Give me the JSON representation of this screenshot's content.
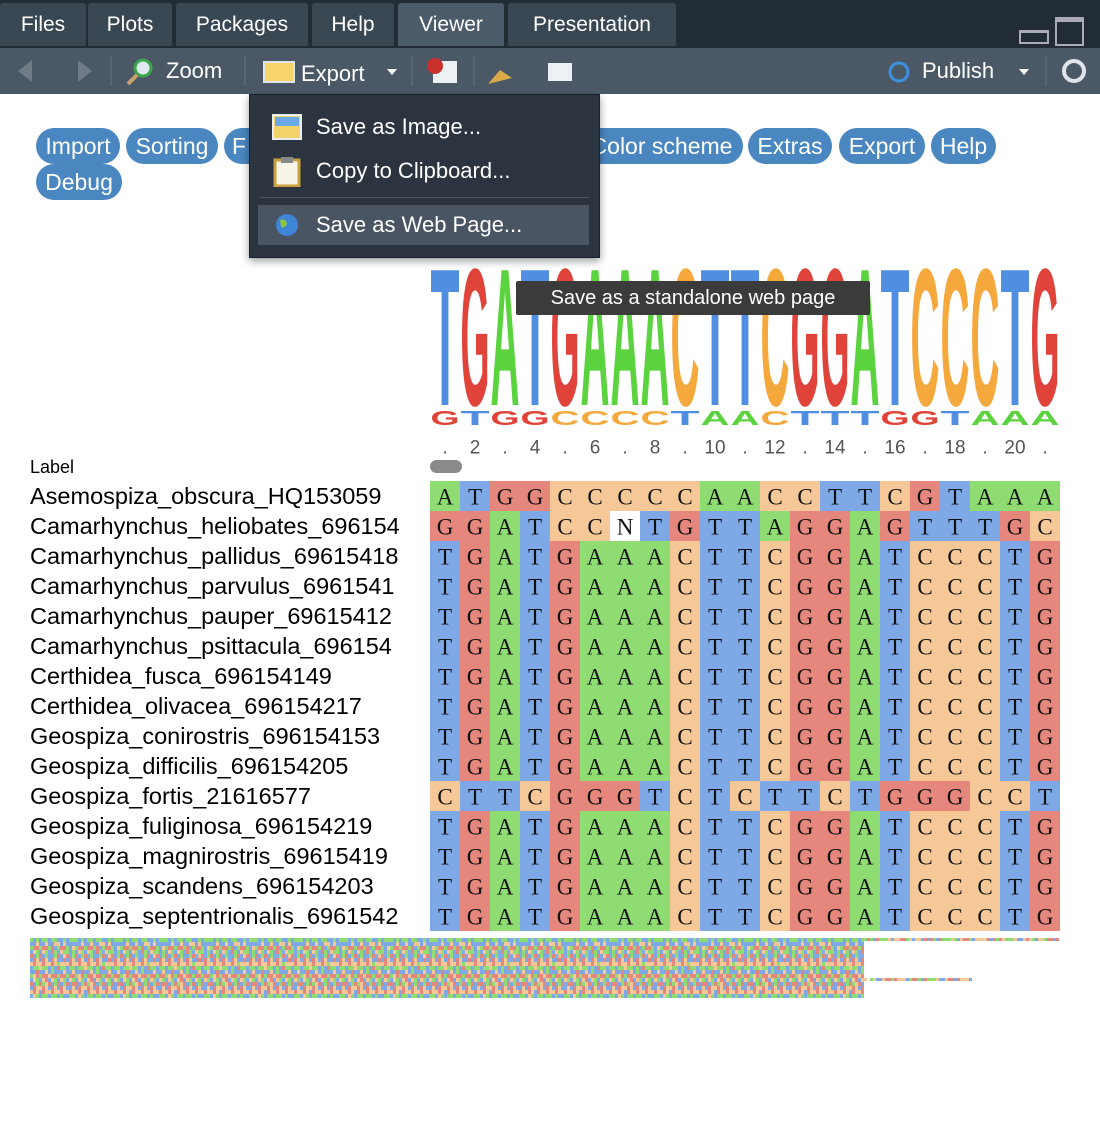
{
  "tabs": [
    "Files",
    "Plots",
    "Packages",
    "Help",
    "Viewer",
    "Presentation"
  ],
  "active_tab": "Viewer",
  "toolbar": {
    "zoom": "Zoom",
    "export": "Export",
    "publish": "Publish"
  },
  "export_menu": {
    "items": [
      "Save as Image...",
      "Copy to Clipboard...",
      "Save as Web Page..."
    ],
    "highlighted": "Save as Web Page..."
  },
  "tooltip": "Save as a standalone web page",
  "buttons": [
    "Import",
    "Sorting",
    "F",
    "Color scheme",
    "Extras",
    "Export",
    "Help",
    "Debug"
  ],
  "logo": {
    "main": "TGATGAAACTTCGGATCCCTG",
    "minor": "GTGGCCCCTAACTTTGGTAAA",
    "axis": [
      ".",
      "2",
      ".",
      "4",
      ".",
      "6",
      ".",
      "8",
      ".",
      "10",
      ".",
      "12",
      ".",
      "14",
      ".",
      "16",
      ".",
      "18",
      ".",
      "20",
      "."
    ]
  },
  "alignment": {
    "header": "Label",
    "colors": {
      "A": "#8fdc72",
      "T": "#7fa8e6",
      "G": "#e5877c",
      "C": "#f6c897",
      "N": "#ffffff"
    },
    "logo_colors": {
      "A": "#5bd33e",
      "T": "#4f8ee0",
      "G": "#e0433a",
      "C": "#f5a83c"
    },
    "rows": [
      {
        "name": "Asemospiza_obscura_HQ153059",
        "sequence": "ATGGCCCCCAACCTTCGTAAA"
      },
      {
        "name": "Camarhynchus_heliobates_696154",
        "sequence": "GGATCCNTGTTAGGAGTTTGC"
      },
      {
        "name": "Camarhynchus_pallidus_69615418",
        "sequence": "TGATGAAACTTCGGATCCCTG"
      },
      {
        "name": "Camarhynchus_parvulus_6961541",
        "sequence": "TGATGAAACTTCGGATCCCTG"
      },
      {
        "name": "Camarhynchus_pauper_69615412",
        "sequence": "TGATGAAACTTCGGATCCCTG"
      },
      {
        "name": "Camarhynchus_psittacula_696154",
        "sequence": "TGATGAAACTTCGGATCCCTG"
      },
      {
        "name": "Certhidea_fusca_696154149",
        "sequence": "TGATGAAACTTCGGATCCCTG"
      },
      {
        "name": "Certhidea_olivacea_696154217",
        "sequence": "TGATGAAACTTCGGATCCCTG"
      },
      {
        "name": "Geospiza_conirostris_696154153",
        "sequence": "TGATGAAACTTCGGATCCCTG"
      },
      {
        "name": "Geospiza_difficilis_696154205",
        "sequence": "TGATGAAACTTCGGATCCCTG"
      },
      {
        "name": "Geospiza_fortis_21616577",
        "sequence": "CTTCGGGTCTCTTCTGGGCCT"
      },
      {
        "name": "Geospiza_fuliginosa_696154219",
        "sequence": "TGATGAAACTTCGGATCCCTG"
      },
      {
        "name": "Geospiza_magnirostris_69615419",
        "sequence": "TGATGAAACTTCGGATCCCTG"
      },
      {
        "name": "Geospiza_scandens_696154203",
        "sequence": "TGATGAAACTTCGGATCCCTG"
      },
      {
        "name": "Geospiza_septentrionalis_6961542",
        "sequence": "TGATGAAACTTCGGATCCCTG"
      }
    ]
  }
}
